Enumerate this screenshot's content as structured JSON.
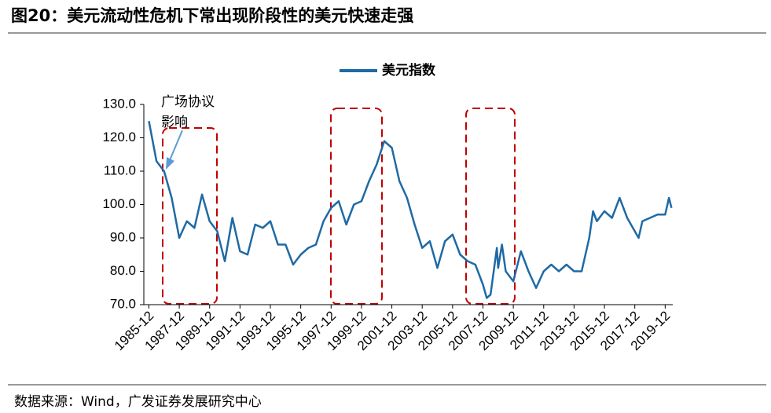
{
  "chart_data": {
    "type": "line",
    "title": "图20：美元流动性危机下常出现阶段性的美元快速走强",
    "source": "数据来源：Wind，广发证券发展研究中心",
    "annotation": [
      "广场协议",
      "影响"
    ],
    "legend": "top",
    "x": [
      "1985-12",
      "1986-06",
      "1986-12",
      "1987-06",
      "1987-12",
      "1988-06",
      "1988-12",
      "1989-06",
      "1989-12",
      "1990-06",
      "1990-12",
      "1991-06",
      "1991-12",
      "1992-06",
      "1992-12",
      "1993-06",
      "1993-12",
      "1994-06",
      "1994-12",
      "1995-06",
      "1995-12",
      "1996-06",
      "1996-12",
      "1997-06",
      "1997-12",
      "1998-06",
      "1998-12",
      "1999-06",
      "1999-12",
      "2000-06",
      "2000-12",
      "2001-06",
      "2001-12",
      "2002-06",
      "2002-12",
      "2003-06",
      "2003-12",
      "2004-06",
      "2004-12",
      "2005-06",
      "2005-12",
      "2006-06",
      "2006-12",
      "2007-06",
      "2007-12",
      "2008-03",
      "2008-06",
      "2008-11",
      "2008-12",
      "2009-03",
      "2009-06",
      "2009-12",
      "2010-06",
      "2010-12",
      "2011-06",
      "2011-12",
      "2012-06",
      "2012-12",
      "2013-06",
      "2013-12",
      "2014-06",
      "2014-12",
      "2015-03",
      "2015-06",
      "2015-12",
      "2016-06",
      "2016-12",
      "2017-06",
      "2017-12",
      "2018-03",
      "2018-06",
      "2018-12",
      "2019-06",
      "2019-12",
      "2020-03",
      "2020-05"
    ],
    "series": [
      {
        "name": "美元指数",
        "color": "#1f6aa5",
        "values": [
          125,
          113,
          110,
          102,
          90,
          95,
          93,
          103,
          95,
          92,
          83,
          96,
          86,
          85,
          94,
          93,
          95,
          88,
          88,
          82,
          85,
          87,
          88,
          95,
          99,
          101,
          94,
          100,
          101,
          107,
          112,
          119,
          117,
          107,
          102,
          94,
          87,
          89,
          81,
          89,
          91,
          85,
          83,
          82,
          76,
          72,
          73,
          87,
          81,
          88,
          80,
          77,
          86,
          80,
          75,
          80,
          82,
          80,
          82,
          80,
          80,
          90,
          98,
          95,
          98,
          96,
          102,
          96,
          92,
          90,
          95,
          96,
          97,
          97,
          102,
          99
        ]
      }
    ],
    "xlim": [
      "1985-08",
      "2020-06"
    ],
    "xticks": [
      "1985-12",
      "1987-12",
      "1989-12",
      "1991-12",
      "1993-12",
      "1995-12",
      "1997-12",
      "1999-12",
      "2001-12",
      "2003-12",
      "2005-12",
      "2007-12",
      "2009-12",
      "2011-12",
      "2013-12",
      "2015-12",
      "2017-12",
      "2019-12"
    ],
    "ylim": [
      70,
      130
    ],
    "yticks": [
      {
        "value": 70,
        "label": "70.0"
      },
      {
        "value": 80,
        "label": "80.0"
      },
      {
        "value": 90,
        "label": "90.0"
      },
      {
        "value": 100,
        "label": "100.0"
      },
      {
        "value": 110,
        "label": "110.0"
      },
      {
        "value": 120,
        "label": "120.0"
      },
      {
        "value": 130,
        "label": "130.0"
      }
    ]
  }
}
